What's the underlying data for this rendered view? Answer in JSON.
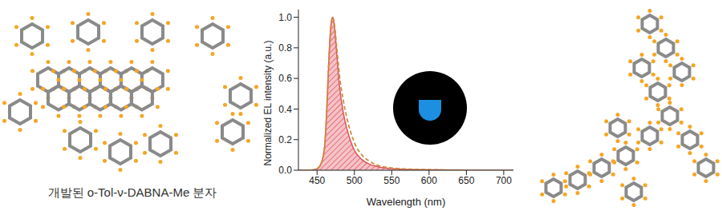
{
  "caption": "개발된 o-Tol-ν-DABNA-Me 분자",
  "chart_data": {
    "type": "line",
    "x_label": "Wavelength (nm)",
    "y_label": "Normalized EL intensity (a.u.)",
    "x": [
      425,
      440,
      450,
      455,
      460,
      463,
      466,
      469,
      471,
      473,
      476,
      480,
      485,
      490,
      495,
      500,
      510,
      520,
      530,
      550,
      575,
      600,
      650,
      700,
      713
    ],
    "series": [
      {
        "type": "area",
        "color": "#e0525e",
        "line_style": "solid",
        "values": [
          0,
          0,
          0.01,
          0.04,
          0.15,
          0.4,
          0.75,
          0.97,
          1.0,
          0.95,
          0.78,
          0.55,
          0.38,
          0.27,
          0.19,
          0.13,
          0.07,
          0.04,
          0.025,
          0.01,
          0.005,
          0.003,
          0,
          0,
          0
        ]
      },
      {
        "type": "line",
        "color": "#c8913a",
        "line_style": "dashed",
        "values": [
          0,
          0,
          0.01,
          0.04,
          0.15,
          0.4,
          0.74,
          0.96,
          1.0,
          0.96,
          0.82,
          0.62,
          0.46,
          0.34,
          0.25,
          0.18,
          0.1,
          0.06,
          0.035,
          0.015,
          0.007,
          0.004,
          0.001,
          0,
          0
        ]
      }
    ],
    "xlim": [
      425,
      713
    ],
    "xticks": [
      450,
      500,
      550,
      600,
      650,
      700
    ],
    "ylim": [
      0,
      1.05
    ],
    "yticks": [
      {
        "value": 0,
        "label": "0.0"
      },
      {
        "value": 0.2,
        "label": "0.2"
      },
      {
        "value": 0.4,
        "label": "0.4"
      },
      {
        "value": 0.6,
        "label": "0.6"
      },
      {
        "value": 0.8,
        "label": "0.8"
      },
      {
        "value": 1.0,
        "label": "1.0"
      }
    ],
    "grid": false
  }
}
